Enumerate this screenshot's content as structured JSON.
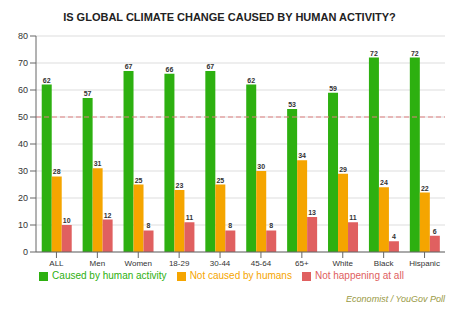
{
  "chart_data": {
    "type": "bar",
    "title": "IS GLOBAL CLIMATE CHANGE CAUSED BY HUMAN ACTIVITY?",
    "categories": [
      "ALL",
      "Men",
      "Women",
      "18-29",
      "30-44",
      "45-64",
      "65+",
      "White",
      "Black",
      "Hispanic"
    ],
    "series": [
      {
        "name": "Caused by human activity",
        "color": "#2db010",
        "values": [
          62,
          57,
          67,
          66,
          67,
          62,
          53,
          59,
          72,
          72
        ]
      },
      {
        "name": "Not caused by humans",
        "color": "#f5a500",
        "values": [
          28,
          31,
          25,
          23,
          25,
          30,
          34,
          29,
          24,
          22
        ]
      },
      {
        "name": "Not happening at all",
        "color": "#e06060",
        "values": [
          10,
          12,
          8,
          11,
          8,
          8,
          13,
          11,
          4,
          6
        ]
      }
    ],
    "ylim": [
      0,
      80
    ],
    "yticks": [
      0,
      10,
      20,
      30,
      40,
      50,
      60,
      70,
      80
    ],
    "grid": true,
    "data_labels": true,
    "legend": "bottom",
    "reference_line": {
      "value": 50,
      "color": "#e08080",
      "line_style": "dashed"
    },
    "source": "Economist / YouGov Poll"
  }
}
